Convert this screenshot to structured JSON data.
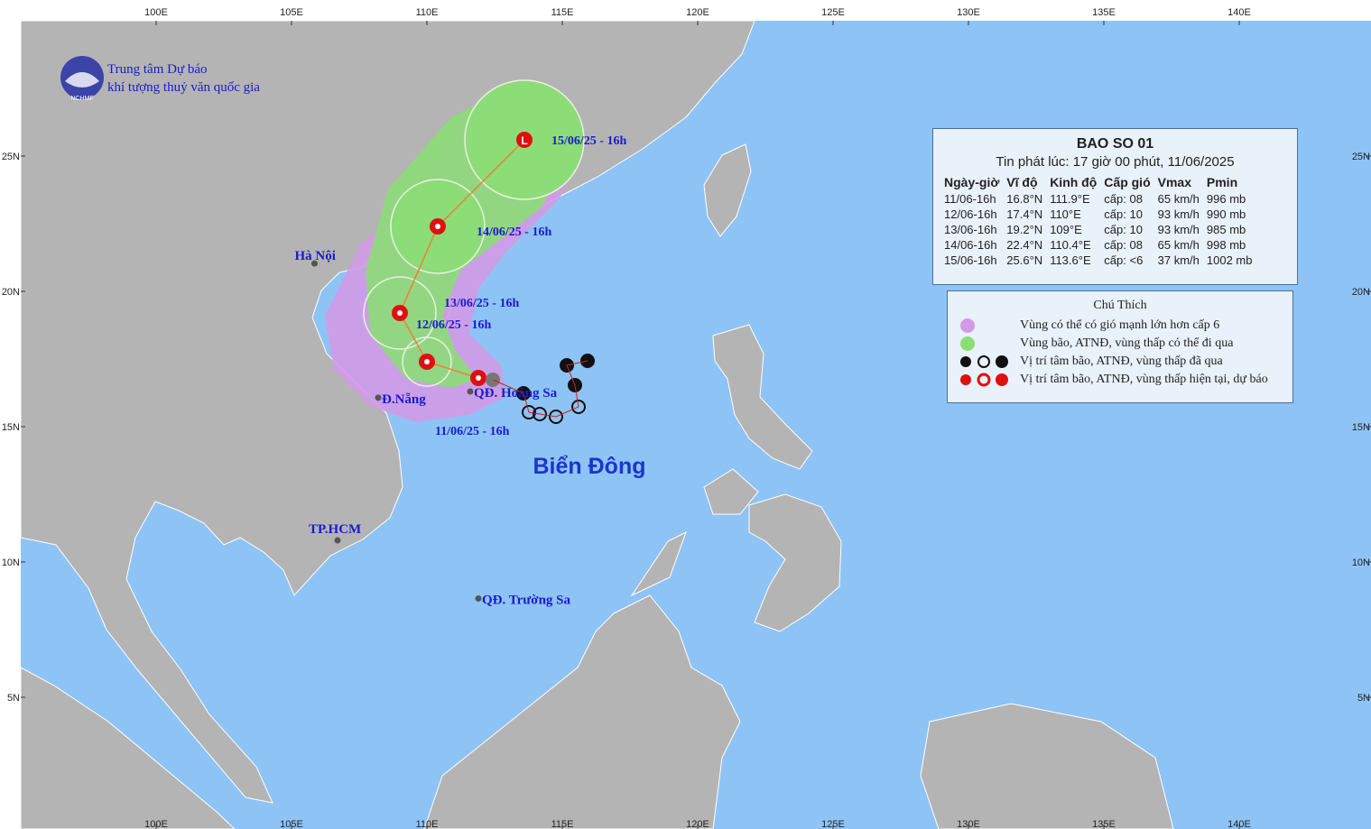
{
  "header": {
    "org_line1": "Trung tâm Dự báo",
    "org_line2": "khí tượng thuỷ văn quốc gia",
    "logo_text": "NCHMF"
  },
  "map": {
    "xticks": [
      {
        "value": 100,
        "label": "100E"
      },
      {
        "value": 105,
        "label": "105E"
      },
      {
        "value": 110,
        "label": "110E"
      },
      {
        "value": 115,
        "label": "115E"
      },
      {
        "value": 120,
        "label": "120E"
      },
      {
        "value": 125,
        "label": "125E"
      },
      {
        "value": 130,
        "label": "130E"
      },
      {
        "value": 135,
        "label": "135E"
      },
      {
        "value": 140,
        "label": "140E"
      }
    ],
    "yticks": [
      {
        "value": 25,
        "label": "25N"
      },
      {
        "value": 20,
        "label": "20N"
      },
      {
        "value": 15,
        "label": "15N"
      },
      {
        "value": 10,
        "label": "10N"
      },
      {
        "value": 5,
        "label": "5N"
      }
    ],
    "places": [
      {
        "label": "Hà Nội",
        "lon": 105.85,
        "lat": 21.03
      },
      {
        "label": "Đ.Nẵng",
        "lon": 108.2,
        "lat": 16.07
      },
      {
        "label": "TP.HCM",
        "lon": 106.7,
        "lat": 10.8
      },
      {
        "label": "QĐ. Hoàng Sa",
        "lon": 111.6,
        "lat": 16.3
      },
      {
        "label": "QĐ. Trường Sa",
        "lon": 111.9,
        "lat": 8.65
      }
    ],
    "sea_label": "Biển Đông",
    "track_labels": [
      "11/06/25 - 16h",
      "12/06/25 - 16h",
      "13/06/25 - 16h",
      "14/06/25 - 16h",
      "15/06/25 - 16h"
    ]
  },
  "info_box": {
    "title": "BAO SO 01",
    "issued": "Tin phát lúc: 17 giờ 00 phút, 11/06/2025",
    "columns": [
      "Ngày-giờ",
      "Vĩ độ",
      "Kinh độ",
      "Cấp gió",
      "Vmax",
      "Pmin"
    ],
    "rows": [
      [
        "11/06-16h",
        "16.8°N",
        "111.9°E",
        "cấp: 08",
        "65 km/h",
        "996 mb"
      ],
      [
        "12/06-16h",
        "17.4°N",
        "110°E",
        "cấp: 10",
        "93 km/h",
        "990 mb"
      ],
      [
        "13/06-16h",
        "19.2°N",
        "109°E",
        "cấp: 10",
        "93 km/h",
        "985 mb"
      ],
      [
        "14/06-16h",
        "22.4°N",
        "110.4°E",
        "cấp: 08",
        "65 km/h",
        "998 mb"
      ],
      [
        "15/06-16h",
        "25.6°N",
        "113.6°E",
        "cấp: <6",
        "37 km/h",
        "1002 mb"
      ]
    ]
  },
  "legend": {
    "title": "Chú Thích",
    "items": [
      "Vùng có thể có gió mạnh lớn hơn cấp 6",
      "Vùng bão, ATNĐ, vùng thấp có thể đi qua",
      "Vị trí tâm bão, ATNĐ, vùng thấp đã qua",
      "Vị trí tâm bão, ATNĐ, vùng thấp hiện tại, dự báo"
    ]
  }
}
